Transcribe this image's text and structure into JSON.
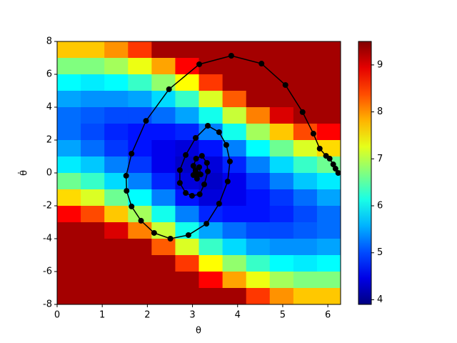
{
  "chart_data": {
    "type": "heatmap",
    "xlabel": "θ",
    "ylabel": "θ̇",
    "xlim": [
      0,
      6.283
    ],
    "ylim": [
      -8,
      8
    ],
    "xticks": [
      0,
      1,
      2,
      3,
      4,
      5,
      6
    ],
    "yticks": [
      -8,
      -6,
      -4,
      -2,
      0,
      2,
      4,
      6,
      8
    ],
    "colormap": "jet",
    "clim": [
      3.9,
      9.5
    ],
    "cticks": [
      4,
      5,
      6,
      7,
      8,
      9
    ],
    "x": [
      0.262,
      0.785,
      1.309,
      1.833,
      2.356,
      2.88,
      3.403,
      3.927,
      4.451,
      4.974,
      5.498,
      6.021
    ],
    "y": [
      7.5,
      6.5,
      5.5,
      4.5,
      3.5,
      2.5,
      1.5,
      0.5,
      -0.5,
      -1.5,
      -2.5,
      -3.5,
      -4.5,
      -5.5,
      -6.5,
      -7.5
    ],
    "z": [
      [
        7.7,
        7.7,
        8.0,
        8.5,
        9.3,
        9.3,
        9.3,
        9.3,
        9.3,
        9.3,
        9.3,
        9.3
      ],
      [
        6.7,
        6.7,
        6.9,
        7.3,
        7.9,
        8.8,
        9.3,
        9.3,
        9.3,
        9.3,
        9.3,
        9.3
      ],
      [
        6.0,
        5.9,
        6.0,
        6.3,
        6.8,
        7.4,
        8.5,
        9.3,
        9.3,
        9.3,
        9.3,
        9.3
      ],
      [
        5.5,
        5.4,
        5.4,
        5.5,
        5.8,
        6.3,
        7.2,
        8.3,
        9.3,
        9.3,
        9.3,
        9.3
      ],
      [
        5.2,
        5.1,
        5.0,
        5.0,
        5.2,
        5.5,
        6.1,
        7.1,
        8.1,
        9.0,
        9.3,
        9.3
      ],
      [
        5.2,
        5.0,
        4.8,
        4.7,
        4.7,
        4.8,
        5.3,
        6.1,
        6.9,
        7.7,
        8.4,
        8.8
      ],
      [
        5.5,
        5.2,
        4.9,
        4.7,
        4.5,
        4.4,
        4.7,
        5.3,
        6.0,
        6.6,
        7.2,
        7.6
      ],
      [
        5.9,
        5.7,
        5.3,
        4.9,
        4.5,
        4.3,
        4.4,
        4.8,
        5.3,
        5.8,
        6.3,
        6.6
      ],
      [
        6.6,
        6.3,
        5.8,
        5.3,
        4.8,
        4.4,
        4.3,
        4.5,
        4.9,
        5.3,
        5.7,
        5.9
      ],
      [
        7.6,
        7.2,
        6.6,
        6.0,
        5.3,
        4.7,
        4.4,
        4.5,
        4.7,
        4.9,
        5.2,
        5.5
      ],
      [
        8.8,
        8.4,
        7.7,
        6.9,
        6.1,
        5.3,
        4.8,
        4.7,
        4.7,
        4.8,
        5.0,
        5.2
      ],
      [
        9.3,
        9.3,
        9.0,
        8.1,
        7.1,
        6.1,
        5.5,
        5.2,
        5.0,
        5.0,
        5.1,
        5.2
      ],
      [
        9.3,
        9.3,
        9.3,
        9.3,
        8.3,
        7.2,
        6.3,
        5.8,
        5.5,
        5.4,
        5.4,
        5.5
      ],
      [
        9.3,
        9.3,
        9.3,
        9.3,
        9.3,
        8.5,
        7.4,
        6.8,
        6.3,
        6.0,
        5.9,
        6.0
      ],
      [
        9.3,
        9.3,
        9.3,
        9.3,
        9.3,
        9.3,
        8.8,
        7.9,
        7.3,
        6.9,
        6.7,
        6.7
      ],
      [
        9.3,
        9.3,
        9.3,
        9.3,
        9.3,
        9.3,
        9.3,
        9.3,
        8.5,
        8.0,
        7.7,
        7.7
      ]
    ],
    "series": [
      {
        "color": "#000000",
        "x": [
          6.23,
          6.17,
          6.12,
          6.04,
          5.96,
          5.82,
          5.68,
          5.44,
          5.06,
          4.53,
          3.86,
          3.15,
          2.48,
          1.97,
          1.65,
          1.53,
          1.54,
          1.65,
          1.86,
          2.15,
          2.51,
          2.91,
          3.31,
          3.59,
          3.78,
          3.83,
          3.75,
          3.59,
          3.34,
          3.07,
          2.85,
          2.72,
          2.72,
          2.85,
          2.99,
          3.16,
          3.26,
          3.34,
          3.32,
          3.21,
          3.08,
          3.02,
          3.02,
          3.1,
          3.18,
          3.15,
          3.07,
          3.1
        ],
        "y": [
          0.0,
          0.26,
          0.52,
          0.87,
          1.04,
          1.48,
          2.39,
          3.7,
          5.35,
          6.65,
          7.13,
          6.61,
          5.09,
          3.17,
          1.17,
          -0.17,
          -1.09,
          -2.04,
          -2.91,
          -3.65,
          -4.0,
          -3.78,
          -3.09,
          -1.87,
          -0.52,
          0.7,
          1.7,
          2.48,
          2.87,
          2.13,
          1.09,
          0.17,
          -0.61,
          -1.22,
          -1.39,
          -1.3,
          -0.7,
          0.09,
          0.61,
          1.04,
          0.87,
          0.43,
          -0.13,
          -0.35,
          -0.09,
          0.35,
          0.17,
          -0.04
        ]
      }
    ]
  }
}
